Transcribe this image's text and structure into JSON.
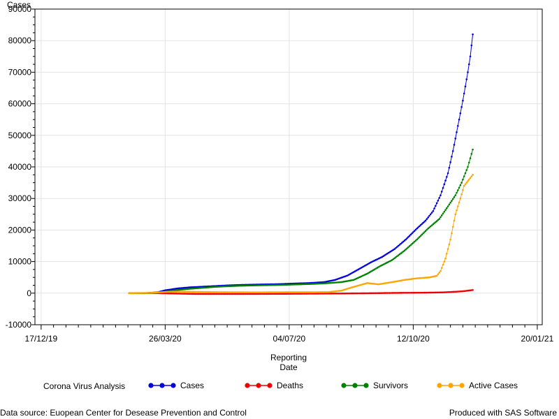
{
  "chart_data": {
    "type": "line",
    "ylabel": "Cases",
    "xlabel": [
      "Reporting",
      "Date"
    ],
    "ylim": [
      -10000,
      90000
    ],
    "yticks": [
      -10000,
      0,
      10000,
      20000,
      30000,
      40000,
      50000,
      60000,
      70000,
      80000,
      90000
    ],
    "xlim": [
      "2019-12-12",
      "2021-01-24"
    ],
    "xticks": [
      {
        "date": "2019-12-17",
        "label": "17/12/19"
      },
      {
        "date": "2020-03-26",
        "label": "26/03/20"
      },
      {
        "date": "2020-07-04",
        "label": "04/07/20"
      },
      {
        "date": "2020-10-12",
        "label": "12/10/20"
      },
      {
        "date": "2021-01-20",
        "label": "20/01/21"
      }
    ],
    "grid": true,
    "legend_title": "Corona Virus Analysis",
    "legend_position": "bottom",
    "series": [
      {
        "name": "Cases",
        "color": "#0000dd",
        "points": [
          [
            "2020-02-26",
            0
          ],
          [
            "2020-03-10",
            0
          ],
          [
            "2020-03-20",
            300
          ],
          [
            "2020-03-26",
            900
          ],
          [
            "2020-04-05",
            1500
          ],
          [
            "2020-04-15",
            1850
          ],
          [
            "2020-04-25",
            2050
          ],
          [
            "2020-05-05",
            2250
          ],
          [
            "2020-05-15",
            2450
          ],
          [
            "2020-05-25",
            2600
          ],
          [
            "2020-06-10",
            2750
          ],
          [
            "2020-06-25",
            2850
          ],
          [
            "2020-07-04",
            3000
          ],
          [
            "2020-07-20",
            3200
          ],
          [
            "2020-08-01",
            3500
          ],
          [
            "2020-08-10",
            4200
          ],
          [
            "2020-08-20",
            5600
          ],
          [
            "2020-08-30",
            7800
          ],
          [
            "2020-09-08",
            9800
          ],
          [
            "2020-09-17",
            11500
          ],
          [
            "2020-09-27",
            14000
          ],
          [
            "2020-10-06",
            17000
          ],
          [
            "2020-10-15",
            20500
          ],
          [
            "2020-10-22",
            23000
          ],
          [
            "2020-10-28",
            26000
          ],
          [
            "2020-11-03",
            31000
          ],
          [
            "2020-11-09",
            38000
          ],
          [
            "2020-11-13",
            45000
          ],
          [
            "2020-11-17",
            53000
          ],
          [
            "2020-11-21",
            61000
          ],
          [
            "2020-11-25",
            70000
          ],
          [
            "2020-11-27",
            75000
          ],
          [
            "2020-11-29",
            82000
          ]
        ]
      },
      {
        "name": "Deaths",
        "color": "#ee0000",
        "points": [
          [
            "2020-02-26",
            0
          ],
          [
            "2020-03-20",
            0
          ],
          [
            "2020-04-01",
            -100
          ],
          [
            "2020-04-20",
            -250
          ],
          [
            "2020-05-20",
            -250
          ],
          [
            "2020-07-01",
            -200
          ],
          [
            "2020-08-15",
            -100
          ],
          [
            "2020-09-10",
            0
          ],
          [
            "2020-10-01",
            100
          ],
          [
            "2020-10-20",
            150
          ],
          [
            "2020-11-05",
            250
          ],
          [
            "2020-11-15",
            450
          ],
          [
            "2020-11-22",
            650
          ],
          [
            "2020-11-29",
            1000
          ]
        ]
      },
      {
        "name": "Survivors",
        "color": "#008000",
        "points": [
          [
            "2020-02-26",
            0
          ],
          [
            "2020-03-10",
            0
          ],
          [
            "2020-03-20",
            100
          ],
          [
            "2020-03-26",
            400
          ],
          [
            "2020-04-05",
            1000
          ],
          [
            "2020-04-15",
            1400
          ],
          [
            "2020-04-25",
            1700
          ],
          [
            "2020-05-05",
            2000
          ],
          [
            "2020-05-15",
            2200
          ],
          [
            "2020-05-25",
            2350
          ],
          [
            "2020-06-10",
            2500
          ],
          [
            "2020-06-25",
            2600
          ],
          [
            "2020-07-04",
            2700
          ],
          [
            "2020-07-20",
            2900
          ],
          [
            "2020-08-01",
            3100
          ],
          [
            "2020-08-15",
            3500
          ],
          [
            "2020-08-25",
            4200
          ],
          [
            "2020-09-05",
            6200
          ],
          [
            "2020-09-15",
            8500
          ],
          [
            "2020-09-25",
            10500
          ],
          [
            "2020-10-05",
            13500
          ],
          [
            "2020-10-15",
            17000
          ],
          [
            "2020-10-24",
            20500
          ],
          [
            "2020-11-02",
            23500
          ],
          [
            "2020-11-09",
            27500
          ],
          [
            "2020-11-15",
            31000
          ],
          [
            "2020-11-20",
            35000
          ],
          [
            "2020-11-25",
            40000
          ],
          [
            "2020-11-29",
            45500
          ]
        ]
      },
      {
        "name": "Active Cases",
        "color": "#ffa500",
        "points": [
          [
            "2020-02-26",
            0
          ],
          [
            "2020-03-15",
            100
          ],
          [
            "2020-03-26",
            400
          ],
          [
            "2020-04-05",
            500
          ],
          [
            "2020-04-20",
            400
          ],
          [
            "2020-05-10",
            300
          ],
          [
            "2020-06-10",
            250
          ],
          [
            "2020-07-04",
            300
          ],
          [
            "2020-07-25",
            300
          ],
          [
            "2020-08-05",
            350
          ],
          [
            "2020-08-15",
            800
          ],
          [
            "2020-08-25",
            2000
          ],
          [
            "2020-09-05",
            3200
          ],
          [
            "2020-09-14",
            2800
          ],
          [
            "2020-09-25",
            3500
          ],
          [
            "2020-10-05",
            4200
          ],
          [
            "2020-10-15",
            4700
          ],
          [
            "2020-10-25",
            5000
          ],
          [
            "2020-10-31",
            5500
          ],
          [
            "2020-11-03",
            7000
          ],
          [
            "2020-11-07",
            11000
          ],
          [
            "2020-11-11",
            17000
          ],
          [
            "2020-11-15",
            25000
          ],
          [
            "2020-11-19",
            30000
          ],
          [
            "2020-11-22",
            34000
          ],
          [
            "2020-11-25",
            35500
          ],
          [
            "2020-11-29",
            37500
          ]
        ]
      }
    ]
  },
  "footer": {
    "source": "Data source: Euopean Center for Desease Prevention and Control",
    "produced_by": "Produced with SAS Software"
  }
}
